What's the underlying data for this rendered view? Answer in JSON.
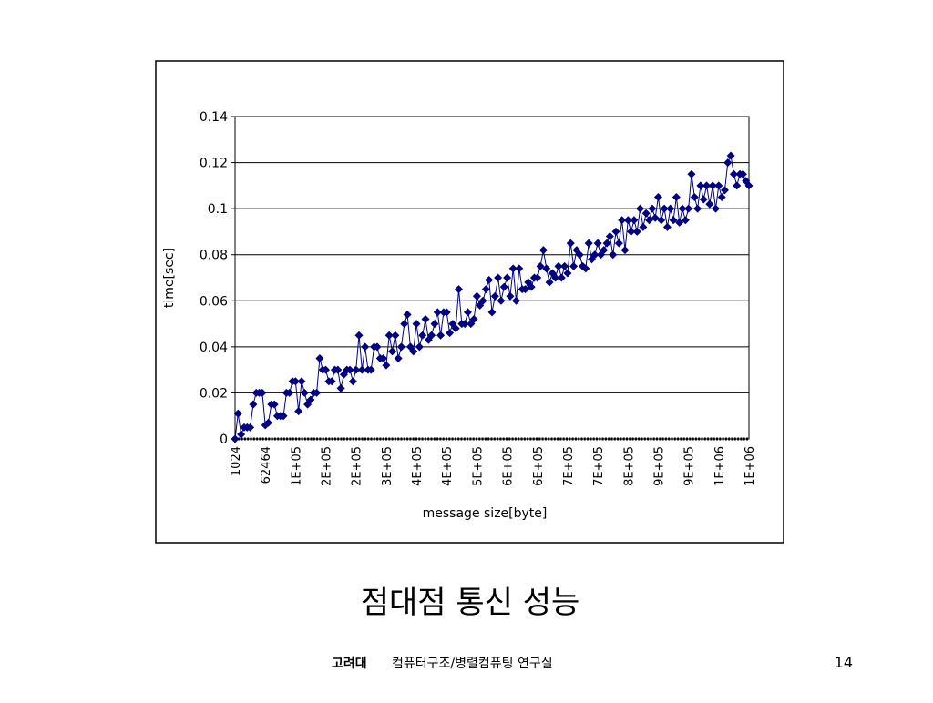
{
  "chart_data": {
    "type": "line",
    "color": "#000080",
    "marker": "diamond",
    "grid": true,
    "y_label": "time[sec]",
    "x_label": "message size[byte]",
    "ylim": [
      0,
      0.14
    ],
    "yticks": [
      0,
      0.02,
      0.04,
      0.06,
      0.08,
      0.1,
      0.12,
      0.14
    ],
    "categories": [
      "1024",
      null,
      null,
      null,
      null,
      null,
      null,
      null,
      null,
      null,
      "62464",
      null,
      null,
      null,
      null,
      null,
      null,
      null,
      null,
      null,
      "1E+05",
      null,
      null,
      null,
      null,
      null,
      null,
      null,
      null,
      null,
      "2E+05",
      null,
      null,
      null,
      null,
      null,
      null,
      null,
      null,
      null,
      "2E+05",
      null,
      null,
      null,
      null,
      null,
      null,
      null,
      null,
      null,
      "3E+05",
      null,
      null,
      null,
      null,
      null,
      null,
      null,
      null,
      null,
      "4E+05",
      null,
      null,
      null,
      null,
      null,
      null,
      null,
      null,
      null,
      "4E+05",
      null,
      null,
      null,
      null,
      null,
      null,
      null,
      null,
      null,
      "5E+05",
      null,
      null,
      null,
      null,
      null,
      null,
      null,
      null,
      null,
      "6E+05",
      null,
      null,
      null,
      null,
      null,
      null,
      null,
      null,
      null,
      "6E+05",
      null,
      null,
      null,
      null,
      null,
      null,
      null,
      null,
      null,
      "7E+05",
      null,
      null,
      null,
      null,
      null,
      null,
      null,
      null,
      null,
      "7E+05",
      null,
      null,
      null,
      null,
      null,
      null,
      null,
      null,
      null,
      "8E+05",
      null,
      null,
      null,
      null,
      null,
      null,
      null,
      null,
      null,
      "9E+05",
      null,
      null,
      null,
      null,
      null,
      null,
      null,
      null,
      null,
      "9E+05",
      null,
      null,
      null,
      null,
      null,
      null,
      null,
      null,
      null,
      "1E+06",
      null,
      null,
      null,
      null,
      null,
      null,
      null,
      null,
      null,
      "1E+06"
    ],
    "values": [
      0,
      0.011,
      0.002,
      0.005,
      0.005,
      0.005,
      0.015,
      0.02,
      0.02,
      0.02,
      0.006,
      0.007,
      0.015,
      0.015,
      0.01,
      0.01,
      0.01,
      0.02,
      0.02,
      0.025,
      0.025,
      0.012,
      0.025,
      0.02,
      0.015,
      0.017,
      0.02,
      0.02,
      0.035,
      0.03,
      0.03,
      0.025,
      0.025,
      0.03,
      0.03,
      0.022,
      0.028,
      0.03,
      0.03,
      0.025,
      0.03,
      0.045,
      0.03,
      0.04,
      0.03,
      0.03,
      0.04,
      0.04,
      0.035,
      0.035,
      0.032,
      0.045,
      0.038,
      0.045,
      0.035,
      0.04,
      0.05,
      0.054,
      0.04,
      0.038,
      0.05,
      0.04,
      0.045,
      0.052,
      0.043,
      0.045,
      0.05,
      0.055,
      0.045,
      0.055,
      0.055,
      0.046,
      0.05,
      0.048,
      0.065,
      0.05,
      0.05,
      0.055,
      0.05,
      0.052,
      0.062,
      0.058,
      0.06,
      0.065,
      0.069,
      0.055,
      0.062,
      0.07,
      0.06,
      0.066,
      0.07,
      0.062,
      0.074,
      0.06,
      0.074,
      0.065,
      0.065,
      0.068,
      0.066,
      0.07,
      0.07,
      0.075,
      0.082,
      0.074,
      0.068,
      0.072,
      0.07,
      0.075,
      0.07,
      0.075,
      0.072,
      0.085,
      0.075,
      0.082,
      0.08,
      0.075,
      0.074,
      0.085,
      0.078,
      0.08,
      0.085,
      0.08,
      0.082,
      0.085,
      0.088,
      0.08,
      0.09,
      0.085,
      0.095,
      0.082,
      0.095,
      0.09,
      0.095,
      0.09,
      0.1,
      0.092,
      0.098,
      0.095,
      0.1,
      0.096,
      0.105,
      0.095,
      0.1,
      0.092,
      0.1,
      0.095,
      0.105,
      0.094,
      0.1,
      0.095,
      0.1,
      0.115,
      0.105,
      0.1,
      0.11,
      0.104,
      0.11,
      0.102,
      0.11,
      0.1,
      0.11,
      0.105,
      0.108,
      0.12,
      0.123,
      0.115,
      0.11,
      0.115,
      0.115,
      0.112,
      0.11
    ]
  },
  "slide": {
    "title": "점대점 통신 성능",
    "footer_bold": "고려대",
    "footer_text": "컴퓨터구조/병렬컴퓨팅 연구실",
    "page": "14"
  }
}
